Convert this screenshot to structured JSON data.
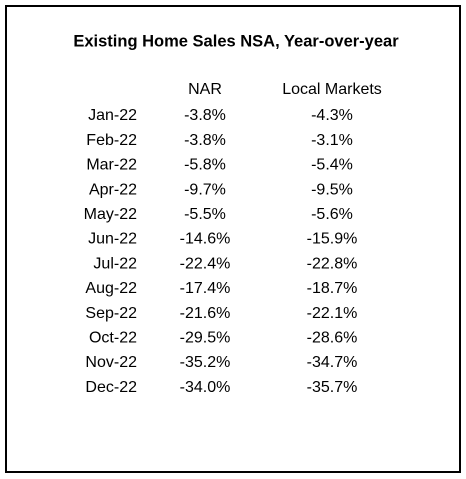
{
  "title": "Existing Home Sales NSA, Year-over-year",
  "table": {
    "columns": [
      "NAR",
      "Local Markets"
    ],
    "rows": [
      [
        "Jan-22",
        "-3.8%",
        "-4.3%"
      ],
      [
        "Feb-22",
        "-3.8%",
        "-3.1%"
      ],
      [
        "Mar-22",
        "-5.8%",
        "-5.4%"
      ],
      [
        "Apr-22",
        "-9.7%",
        "-9.5%"
      ],
      [
        "May-22",
        "-5.5%",
        "-5.6%"
      ],
      [
        "Jun-22",
        "-14.6%",
        "-15.9%"
      ],
      [
        "Jul-22",
        "-22.4%",
        "-22.8%"
      ],
      [
        "Aug-22",
        "-17.4%",
        "-18.7%"
      ],
      [
        "Sep-22",
        "-21.6%",
        "-22.1%"
      ],
      [
        "Oct-22",
        "-29.5%",
        "-28.6%"
      ],
      [
        "Nov-22",
        "-35.2%",
        "-34.7%"
      ],
      [
        "Dec-22",
        "-34.0%",
        "-35.7%"
      ]
    ]
  }
}
